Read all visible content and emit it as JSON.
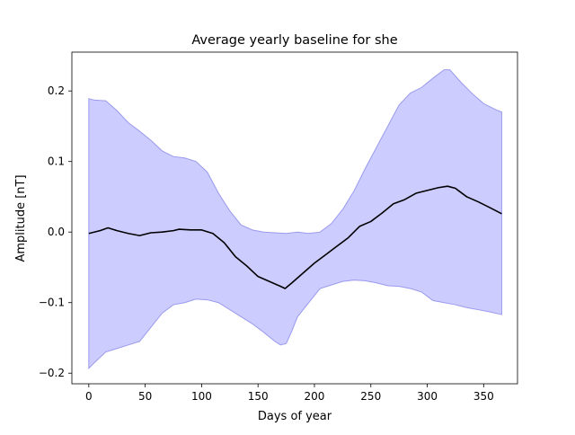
{
  "chart_data": {
    "type": "line",
    "title": "Average yearly baseline for she",
    "xlabel": "Days of year",
    "ylabel": "Amplitude [nT]",
    "xlim": [
      -15,
      380
    ],
    "ylim": [
      -0.215,
      0.255
    ],
    "xticks": [
      0,
      50,
      100,
      150,
      200,
      250,
      300,
      350
    ],
    "xtick_labels": [
      "0",
      "50",
      "100",
      "150",
      "200",
      "250",
      "300",
      "350"
    ],
    "yticks": [
      -0.2,
      -0.1,
      0.0,
      0.1,
      0.2
    ],
    "ytick_labels": [
      "−0.2",
      "−0.1",
      "0.0",
      "0.1",
      "0.2"
    ],
    "grid": false,
    "legend": "none",
    "colors": {
      "band_fill": "#ccccff",
      "band_edge": "#9a9aee",
      "mean_line": "#000000"
    },
    "series": [
      {
        "role": "mean",
        "x": [
          0,
          10,
          17,
          25,
          35,
          45,
          55,
          65,
          75,
          80,
          90,
          100,
          110,
          120,
          130,
          140,
          150,
          160,
          170,
          174,
          180,
          190,
          200,
          210,
          220,
          230,
          240,
          250,
          260,
          270,
          280,
          290,
          300,
          310,
          318,
          325,
          335,
          345,
          355,
          366
        ],
        "y": [
          -0.002,
          0.002,
          0.006,
          0.002,
          -0.002,
          -0.005,
          -0.001,
          0.0,
          0.002,
          0.004,
          0.003,
          0.003,
          -0.002,
          -0.015,
          -0.035,
          -0.048,
          -0.063,
          -0.07,
          -0.077,
          -0.08,
          -0.072,
          -0.058,
          -0.044,
          -0.032,
          -0.02,
          -0.008,
          0.008,
          0.015,
          0.027,
          0.04,
          0.046,
          0.055,
          0.059,
          0.063,
          0.065,
          0.062,
          0.05,
          0.043,
          0.035,
          0.026
        ]
      },
      {
        "role": "band_upper",
        "x": [
          0,
          5,
          15,
          25,
          35,
          45,
          55,
          65,
          75,
          85,
          95,
          105,
          115,
          125,
          135,
          145,
          155,
          165,
          175,
          185,
          195,
          205,
          215,
          225,
          235,
          245,
          255,
          265,
          275,
          285,
          295,
          305,
          315,
          320,
          330,
          340,
          350,
          360,
          366
        ],
        "y": [
          0.189,
          0.187,
          0.186,
          0.172,
          0.155,
          0.143,
          0.13,
          0.115,
          0.107,
          0.105,
          0.1,
          0.085,
          0.055,
          0.03,
          0.01,
          0.003,
          0.0,
          -0.001,
          -0.002,
          0.0,
          -0.002,
          0.0,
          0.012,
          0.032,
          0.058,
          0.09,
          0.12,
          0.15,
          0.18,
          0.197,
          0.205,
          0.218,
          0.23,
          0.23,
          0.212,
          0.196,
          0.182,
          0.174,
          0.17
        ]
      },
      {
        "role": "band_lower",
        "x": [
          0,
          5,
          15,
          25,
          35,
          45,
          55,
          65,
          75,
          85,
          95,
          105,
          115,
          125,
          135,
          145,
          155,
          165,
          170,
          175,
          180,
          185,
          195,
          205,
          215,
          225,
          235,
          245,
          255,
          265,
          275,
          285,
          295,
          305,
          315,
          325,
          335,
          345,
          355,
          366
        ],
        "y": [
          -0.193,
          -0.185,
          -0.17,
          -0.165,
          -0.16,
          -0.155,
          -0.135,
          -0.115,
          -0.103,
          -0.1,
          -0.095,
          -0.096,
          -0.1,
          -0.11,
          -0.12,
          -0.13,
          -0.142,
          -0.155,
          -0.16,
          -0.158,
          -0.14,
          -0.12,
          -0.1,
          -0.08,
          -0.075,
          -0.07,
          -0.068,
          -0.069,
          -0.072,
          -0.076,
          -0.077,
          -0.08,
          -0.085,
          -0.097,
          -0.1,
          -0.103,
          -0.107,
          -0.11,
          -0.113,
          -0.117
        ]
      }
    ]
  }
}
